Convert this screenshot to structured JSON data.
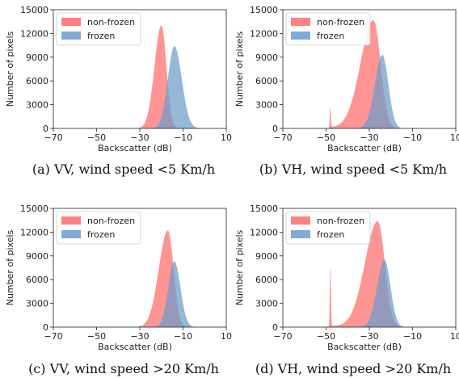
{
  "chart_data": [
    {
      "type": "area",
      "caption": "(a)  VV, wind speed <5 Km/h",
      "xlabel": "Backscatter (dB)",
      "ylabel": "Number of pixels",
      "xlim": [
        -70,
        10
      ],
      "ylim": [
        0,
        15000
      ],
      "xticks": [
        "−70",
        "−50",
        "−30",
        "−10",
        "10"
      ],
      "yticks": [
        "0",
        "3000",
        "6000",
        "9000",
        "12000",
        "15000"
      ],
      "legend_position": "top-left",
      "series": [
        {
          "name": "non-frozen",
          "color": "#ff6b6b",
          "peak_x": -20,
          "peak": 13000,
          "sd_left": 3.2,
          "sd_right": 2.3
        },
        {
          "name": "frozen",
          "color": "#6c9ccb",
          "peak_x": -14,
          "peak": 10400,
          "sd_left": 3.0,
          "sd_right": 3.4
        }
      ]
    },
    {
      "type": "area",
      "caption": "(b)  VH, wind speed <5 Km/h",
      "xlabel": "Backscatter (dB)",
      "ylabel": "Number of pixels",
      "xlim": [
        -70,
        10
      ],
      "ylim": [
        0,
        15000
      ],
      "xticks": [
        "−70",
        "−50",
        "−30",
        "−10",
        "10"
      ],
      "yticks": [
        "0",
        "3000",
        "6000",
        "9000",
        "12000",
        "15000"
      ],
      "legend_position": "top-left",
      "series": [
        {
          "name": "non-frozen",
          "color": "#ff6b6b",
          "peak_x": -28,
          "peak": 13600,
          "sd_left": 6.0,
          "sd_right": 3.2,
          "spike_x": -48,
          "spike": 2600
        },
        {
          "name": "frozen",
          "color": "#6c9ccb",
          "peak_x": -24,
          "peak": 9300,
          "sd_left": 3.4,
          "sd_right": 2.8
        }
      ]
    },
    {
      "type": "area",
      "caption": "(c)  VV, wind speed >20 Km/h",
      "xlabel": "Backscatter (dB)",
      "ylabel": "Number of pixels",
      "xlim": [
        -70,
        10
      ],
      "ylim": [
        0,
        15000
      ],
      "xticks": [
        "−70",
        "−50",
        "−30",
        "−10",
        "10"
      ],
      "yticks": [
        "0",
        "3000",
        "6000",
        "9000",
        "12000",
        "15000"
      ],
      "legend_position": "top-left",
      "series": [
        {
          "name": "non-frozen",
          "color": "#ff6b6b",
          "peak_x": -17,
          "peak": 12200,
          "sd_left": 4.2,
          "sd_right": 2.6
        },
        {
          "name": "frozen",
          "color": "#6c9ccb",
          "peak_x": -14,
          "peak": 8300,
          "sd_left": 2.8,
          "sd_right": 2.8
        }
      ]
    },
    {
      "type": "area",
      "caption": "(d)  VH, wind speed >20 Km/h",
      "xlabel": "Backscatter (dB)",
      "ylabel": "Number of pixels",
      "xlim": [
        -70,
        10
      ],
      "ylim": [
        0,
        15000
      ],
      "xticks": [
        "−70",
        "−50",
        "−30",
        "−10",
        "10"
      ],
      "yticks": [
        "0",
        "3000",
        "6000",
        "9000",
        "12000",
        "15000"
      ],
      "legend_position": "top-left",
      "series": [
        {
          "name": "non-frozen",
          "color": "#ff6b6b",
          "peak_x": -26,
          "peak": 13300,
          "sd_left": 6.0,
          "sd_right": 3.2,
          "spike_x": -48,
          "spike": 7600
        },
        {
          "name": "frozen",
          "color": "#6c9ccb",
          "peak_x": -23,
          "peak": 8500,
          "sd_left": 3.4,
          "sd_right": 2.8
        }
      ]
    }
  ]
}
